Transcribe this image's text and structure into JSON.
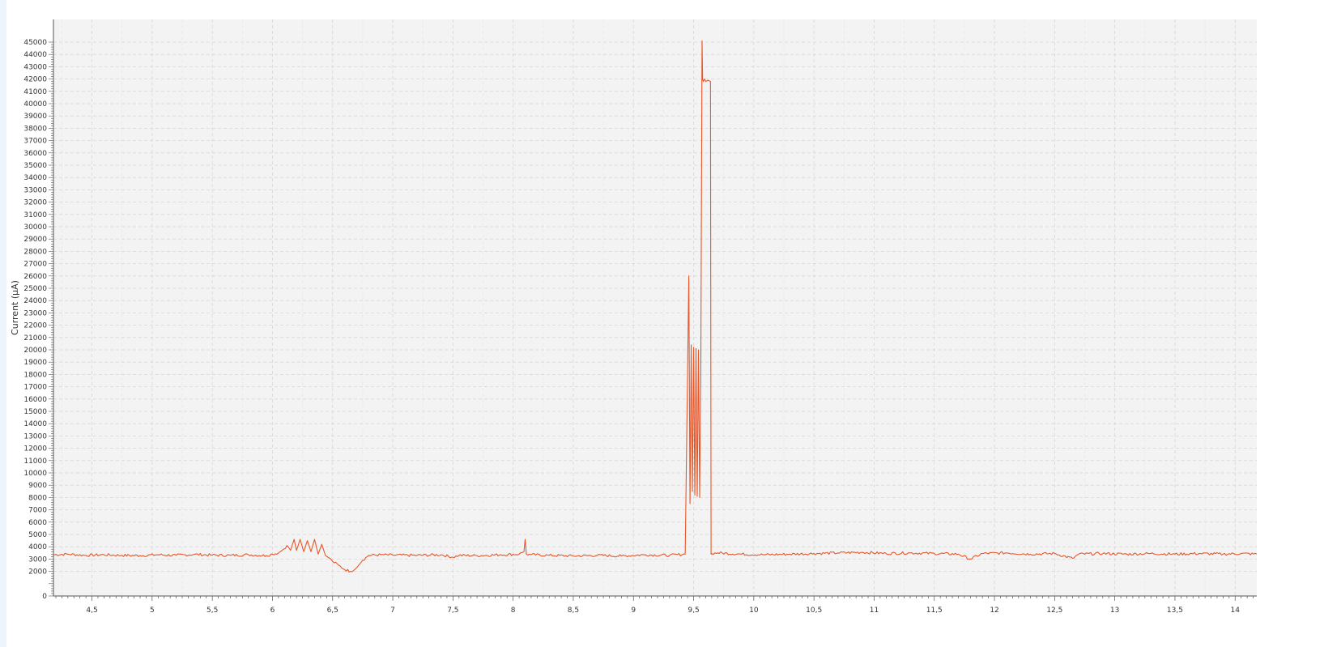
{
  "chart_data": {
    "type": "line",
    "title": "",
    "xlabel": "",
    "ylabel": "Current (µA)",
    "xlim": [
      4.18,
      14.18
    ],
    "ylim": [
      0,
      45000
    ],
    "grid": true,
    "legend": "none",
    "colors": {
      "series": "#e8572a",
      "plot_background": "#f3f3f3",
      "grid": "#d4d4d4",
      "axis": "#555555"
    },
    "x_ticks": [
      4.5,
      5,
      5.5,
      6,
      6.5,
      7,
      7.5,
      8,
      8.5,
      9,
      9.5,
      10,
      10.5,
      11,
      11.5,
      12,
      12.5,
      13,
      13.5,
      14
    ],
    "x_tick_labels": [
      "4,5",
      "5",
      "5,5",
      "6",
      "6,5",
      "7",
      "7,5",
      "8",
      "8,5",
      "9",
      "9,5",
      "10",
      "10,5",
      "11",
      "11,5",
      "12",
      "12,5",
      "13",
      "13,5",
      "14"
    ],
    "y_ticks": [
      0,
      2000,
      3000,
      4000,
      5000,
      6000,
      7000,
      8000,
      9000,
      10000,
      11000,
      12000,
      13000,
      14000,
      15000,
      16000,
      17000,
      18000,
      19000,
      20000,
      21000,
      22000,
      23000,
      24000,
      25000,
      26000,
      27000,
      28000,
      29000,
      30000,
      31000,
      32000,
      33000,
      34000,
      35000,
      36000,
      37000,
      38000,
      39000,
      40000,
      41000,
      42000,
      43000,
      44000,
      45000
    ],
    "y_tick_labels": [
      "0",
      "2000",
      "3000",
      "4000",
      "5000",
      "6000",
      "7000",
      "8000",
      "9000",
      "10000",
      "11000",
      "12000",
      "13000",
      "14000",
      "15000",
      "16000",
      "17000",
      "18000",
      "19000",
      "20000",
      "21000",
      "22000",
      "23000",
      "24000",
      "25000",
      "26000",
      "27000",
      "28000",
      "29000",
      "30000",
      "31000",
      "32000",
      "33000",
      "34000",
      "35000",
      "36000",
      "37000",
      "38000",
      "39000",
      "40000",
      "41000",
      "42000",
      "43000",
      "44000",
      "45000"
    ],
    "series": [
      {
        "x": [
          4.18,
          4.3,
          4.45,
          4.6,
          4.75,
          4.9,
          5.05,
          5.2,
          5.35,
          5.5,
          5.65,
          5.8,
          5.95,
          6.0,
          6.05,
          6.08,
          6.12,
          6.15,
          6.18,
          6.2,
          6.23,
          6.26,
          6.29,
          6.32,
          6.35,
          6.38,
          6.41,
          6.44,
          6.47,
          6.5,
          6.55,
          6.6,
          6.65,
          6.7,
          6.75,
          6.8,
          6.9,
          7.0,
          7.2,
          7.4,
          7.5,
          7.55,
          7.7,
          7.9,
          8.05,
          8.09,
          8.1,
          8.11,
          8.15,
          8.3,
          8.5,
          8.7,
          8.9,
          9.1,
          9.3,
          9.43,
          9.46,
          9.47,
          9.48,
          9.49,
          9.5,
          9.51,
          9.52,
          9.53,
          9.54,
          9.55,
          9.56,
          9.57,
          9.575,
          9.58,
          9.59,
          9.6,
          9.62,
          9.64,
          9.645,
          9.65,
          9.7,
          9.9,
          10.1,
          10.3,
          10.5,
          10.7,
          10.9,
          11.1,
          11.3,
          11.5,
          11.7,
          11.8,
          11.9,
          12.1,
          12.3,
          12.5,
          12.65,
          12.7,
          12.9,
          13.1,
          13.3,
          13.5,
          13.7,
          13.9,
          14.05,
          14.18
        ],
        "y": [
          3350,
          3400,
          3300,
          3350,
          3300,
          3280,
          3350,
          3300,
          3380,
          3320,
          3300,
          3350,
          3280,
          3400,
          3500,
          3700,
          4100,
          3700,
          4600,
          3700,
          4600,
          3600,
          4500,
          3600,
          4600,
          3400,
          4200,
          3300,
          3100,
          2800,
          2500,
          2150,
          2000,
          2300,
          2900,
          3300,
          3350,
          3320,
          3300,
          3350,
          3150,
          3300,
          3280,
          3350,
          3400,
          3600,
          4600,
          3400,
          3350,
          3300,
          3250,
          3300,
          3250,
          3350,
          3300,
          3400,
          26000,
          7500,
          20400,
          8500,
          20200,
          8200,
          20100,
          8100,
          20000,
          8000,
          19000,
          45100,
          42000,
          41800,
          42000,
          41800,
          41900,
          41800,
          3400,
          3450,
          3500,
          3400,
          3350,
          3400,
          3450,
          3500,
          3550,
          3450,
          3500,
          3450,
          3400,
          3000,
          3450,
          3500,
          3400,
          3450,
          3050,
          3400,
          3450,
          3400,
          3450,
          3400,
          3450,
          3400,
          3450,
          3400
        ]
      }
    ]
  }
}
